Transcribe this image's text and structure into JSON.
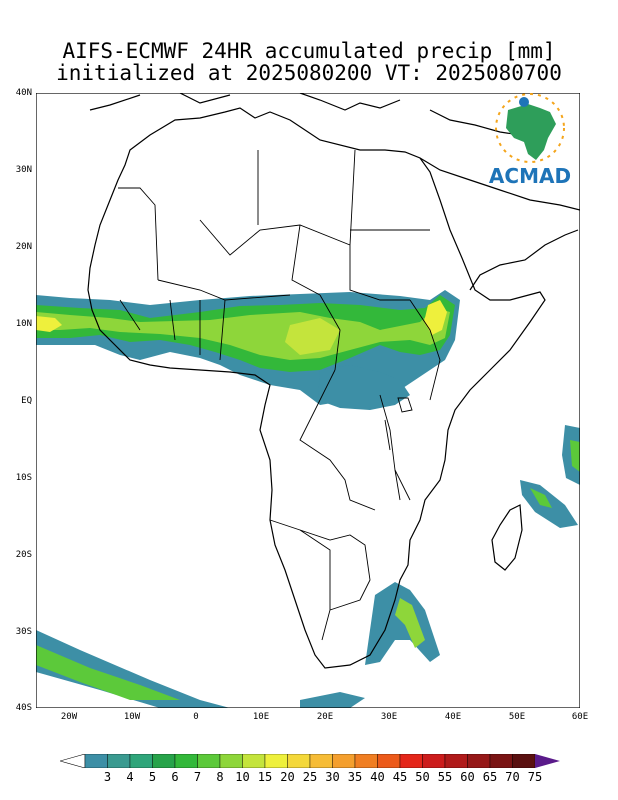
{
  "title": {
    "line1": "AIFS-ECMWF 24HR accumulated precip [mm]",
    "line2": "initialized at 2025080200 VT: 2025080700"
  },
  "axes": {
    "lat_labels": [
      "40N",
      "30N",
      "20N",
      "10N",
      "EQ",
      "10S",
      "20S",
      "30S",
      "40S"
    ],
    "lon_labels": [
      "20W",
      "10W",
      "0",
      "10E",
      "20E",
      "30E",
      "40E",
      "50E",
      "60E"
    ]
  },
  "colorbar": {
    "labels": [
      "3",
      "4",
      "5",
      "6",
      "7",
      "8",
      "10",
      "15",
      "20",
      "25",
      "30",
      "35",
      "40",
      "45",
      "50",
      "55",
      "60",
      "65",
      "70",
      "75"
    ],
    "colors": [
      "#3d8fa6",
      "#3a9a90",
      "#2fa57a",
      "#27a34a",
      "#33b83a",
      "#5cc93a",
      "#8ed63a",
      "#c4e43c",
      "#eef03c",
      "#f4d83a",
      "#f6bc36",
      "#f49f2e",
      "#f07e22",
      "#ec5a1a",
      "#e4261a",
      "#cc1c1c",
      "#b01a1a",
      "#961818",
      "#7a1414",
      "#5a1010"
    ],
    "end_color": "#5a1a8a"
  },
  "logo": {
    "text": "ACMAD",
    "color": "#1e74b8"
  },
  "map": {
    "ocean": "#ffffff",
    "coast_color": "#000000"
  }
}
